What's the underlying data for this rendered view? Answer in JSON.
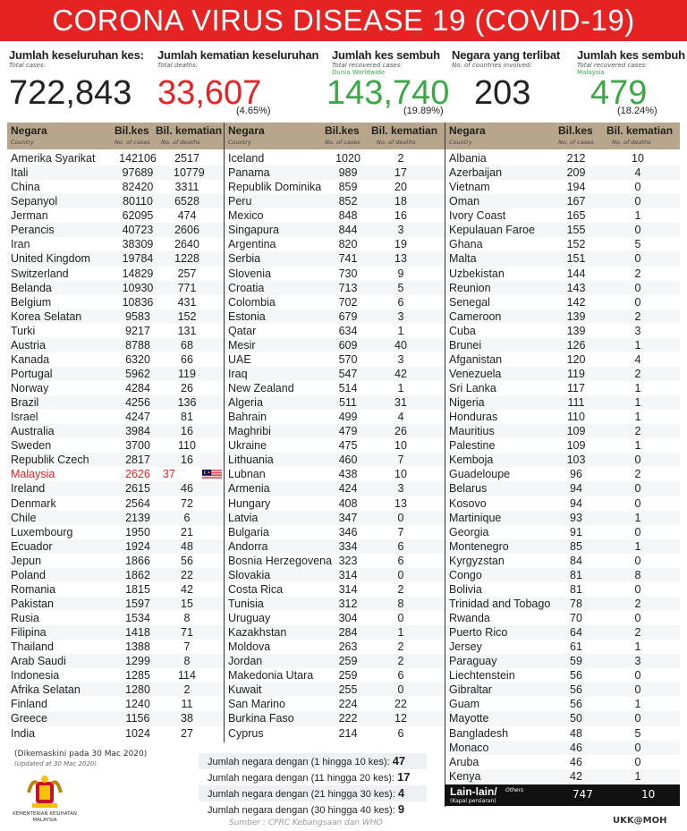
{
  "title": "CORONA VIRUS DISEASE 19 (COVID-19)",
  "stats": [
    {
      "label": "Jumlah keseluruhan kes:",
      "sub": "Total cases:",
      "value": "722,843",
      "color": "#222222"
    },
    {
      "label": "Jumlah kematian keseluruhan",
      "sub": "Total deaths:",
      "value": "33,607",
      "pct": "(4.65%)",
      "color": "#e52322"
    },
    {
      "label": "Jumlah kes sembuh",
      "sub": "Total recovered cases:",
      "sub2": "Dunia Worldwide",
      "value": "143,740",
      "pct": "(19.89%)",
      "color": "#3aa845"
    },
    {
      "label": "Negara yang terlibat",
      "sub": "No. of countries involved:",
      "value": "203",
      "color": "#222222"
    },
    {
      "label": "Jumlah kes sembuh",
      "sub": "Total recovered cases:",
      "sub2": "Malaysia",
      "value": "479",
      "pct": "(18.24%)",
      "color": "#3aa845"
    }
  ],
  "header": {
    "country": "Negara",
    "country_en": "Country",
    "cases": "Bil.kes",
    "cases_en": "No. of cases",
    "deaths": "Bil. kematian",
    "deaths_en": "No. of deaths"
  },
  "highlight": "Malaysia",
  "columns": [
    [
      [
        "Amerika Syarikat",
        "142106",
        "2517"
      ],
      [
        "Itali",
        "97689",
        "10779"
      ],
      [
        "China",
        "82420",
        "3311"
      ],
      [
        "Sepanyol",
        "80110",
        "6528"
      ],
      [
        "Jerman",
        "62095",
        "474"
      ],
      [
        "Perancis",
        "40723",
        "2606"
      ],
      [
        "Iran",
        "38309",
        "2640"
      ],
      [
        "United Kingdom",
        "19784",
        "1228"
      ],
      [
        "Switzerland",
        "14829",
        "257"
      ],
      [
        "Belanda",
        "10930",
        "771"
      ],
      [
        "Belgium",
        "10836",
        "431"
      ],
      [
        "Korea Selatan",
        "9583",
        "152"
      ],
      [
        "Turki",
        "9217",
        "131"
      ],
      [
        "Austria",
        "8788",
        "68"
      ],
      [
        "Kanada",
        "6320",
        "66"
      ],
      [
        "Portugal",
        "5962",
        "119"
      ],
      [
        "Norway",
        "4284",
        "26"
      ],
      [
        "Brazil",
        "4256",
        "136"
      ],
      [
        "Israel",
        "4247",
        "81"
      ],
      [
        "Australia",
        "3984",
        "16"
      ],
      [
        "Sweden",
        "3700",
        "110"
      ],
      [
        "Republik Czech",
        "2817",
        "16"
      ],
      [
        "Malaysia",
        "2626",
        "37"
      ],
      [
        "Ireland",
        "2615",
        "46"
      ],
      [
        "Denmark",
        "2564",
        "72"
      ],
      [
        "Chile",
        "2139",
        "6"
      ],
      [
        "Luxembourg",
        "1950",
        "21"
      ],
      [
        "Ecuador",
        "1924",
        "48"
      ],
      [
        "Jepun",
        "1866",
        "56"
      ],
      [
        "Poland",
        "1862",
        "22"
      ],
      [
        "Romania",
        "1815",
        "42"
      ],
      [
        "Pakistan",
        "1597",
        "15"
      ],
      [
        "Rusia",
        "1534",
        "8"
      ],
      [
        "Filipina",
        "1418",
        "71"
      ],
      [
        "Thailand",
        "1388",
        "7"
      ],
      [
        "Arab Saudi",
        "1299",
        "8"
      ],
      [
        "Indonesia",
        "1285",
        "114"
      ],
      [
        "Afrika Selatan",
        "1280",
        "2"
      ],
      [
        "Finland",
        "1240",
        "11"
      ],
      [
        "Greece",
        "1156",
        "38"
      ],
      [
        "India",
        "1024",
        "27"
      ]
    ],
    [
      [
        "Iceland",
        "1020",
        "2"
      ],
      [
        "Panama",
        "989",
        "17"
      ],
      [
        "Republik Dominika",
        "859",
        "20"
      ],
      [
        "Peru",
        "852",
        "18"
      ],
      [
        "Mexico",
        "848",
        "16"
      ],
      [
        "Singapura",
        "844",
        "3"
      ],
      [
        "Argentina",
        "820",
        "19"
      ],
      [
        "Serbia",
        "741",
        "13"
      ],
      [
        "Slovenia",
        "730",
        "9"
      ],
      [
        "Croatia",
        "713",
        "5"
      ],
      [
        "Colombia",
        "702",
        "6"
      ],
      [
        "Estonia",
        "679",
        "3"
      ],
      [
        "Qatar",
        "634",
        "1"
      ],
      [
        "Mesir",
        "609",
        "40"
      ],
      [
        "UAE",
        "570",
        "3"
      ],
      [
        "Iraq",
        "547",
        "42"
      ],
      [
        "New Zealand",
        "514",
        "1"
      ],
      [
        "Algeria",
        "511",
        "31"
      ],
      [
        "Bahrain",
        "499",
        "4"
      ],
      [
        "Maghribi",
        "479",
        "26"
      ],
      [
        "Ukraine",
        "475",
        "10"
      ],
      [
        "Lithuania",
        "460",
        "7"
      ],
      [
        "Lubnan",
        "438",
        "10"
      ],
      [
        "Armenia",
        "424",
        "3"
      ],
      [
        "Hungary",
        "408",
        "13"
      ],
      [
        "Latvia",
        "347",
        "0"
      ],
      [
        "Bulgaria",
        "346",
        "7"
      ],
      [
        "Andorra",
        "334",
        "6"
      ],
      [
        "Bosnia Herzegovena",
        "323",
        "6"
      ],
      [
        "Slovakia",
        "314",
        "0"
      ],
      [
        "Costa Rica",
        "314",
        "2"
      ],
      [
        "Tunisia",
        "312",
        "8"
      ],
      [
        "Uruguay",
        "304",
        "0"
      ],
      [
        "Kazakhstan",
        "284",
        "1"
      ],
      [
        "Moldova",
        "263",
        "2"
      ],
      [
        "Jordan",
        "259",
        "2"
      ],
      [
        "Makedonia Utara",
        "259",
        "6"
      ],
      [
        "Kuwait",
        "255",
        "0"
      ],
      [
        "San Marino",
        "224",
        "22"
      ],
      [
        "Burkina Faso",
        "222",
        "12"
      ],
      [
        "Cyprus",
        "214",
        "6"
      ]
    ],
    [
      [
        "Albania",
        "212",
        "10"
      ],
      [
        "Azerbaijan",
        "209",
        "4"
      ],
      [
        "Vietnam",
        "194",
        "0"
      ],
      [
        "Oman",
        "167",
        "0"
      ],
      [
        "Ivory Coast",
        "165",
        "1"
      ],
      [
        "Kepulauan Faroe",
        "155",
        "0"
      ],
      [
        "Ghana",
        "152",
        "5"
      ],
      [
        "Malta",
        "151",
        "0"
      ],
      [
        "Uzbekistan",
        "144",
        "2"
      ],
      [
        "Reunion",
        "143",
        "0"
      ],
      [
        "Senegal",
        "142",
        "0"
      ],
      [
        "Cameroon",
        "139",
        "2"
      ],
      [
        "Cuba",
        "139",
        "3"
      ],
      [
        "Brunei",
        "126",
        "1"
      ],
      [
        "Afganistan",
        "120",
        "4"
      ],
      [
        "Venezuela",
        "119",
        "2"
      ],
      [
        "Sri Lanka",
        "117",
        "1"
      ],
      [
        "Nigeria",
        "111",
        "1"
      ],
      [
        "Honduras",
        "110",
        "1"
      ],
      [
        "Mauritius",
        "109",
        "2"
      ],
      [
        "Palestine",
        "109",
        "1"
      ],
      [
        "Kemboja",
        "103",
        "0"
      ],
      [
        "Guadeloupe",
        "96",
        "2"
      ],
      [
        "Belarus",
        "94",
        "0"
      ],
      [
        "Kosovo",
        "94",
        "0"
      ],
      [
        "Martinique",
        "93",
        "1"
      ],
      [
        "Georgia",
        "91",
        "0"
      ],
      [
        "Montenegro",
        "85",
        "1"
      ],
      [
        "Kyrgyzstan",
        "84",
        "0"
      ],
      [
        "Congo",
        "81",
        "8"
      ],
      [
        "Bolivia",
        "81",
        "0"
      ],
      [
        "Trinidad and Tobago",
        "78",
        "2"
      ],
      [
        "Rwanda",
        "70",
        "0"
      ],
      [
        "Puerto Rico",
        "64",
        "2"
      ],
      [
        "Jersey",
        "61",
        "1"
      ],
      [
        "Paraguay",
        "59",
        "3"
      ],
      [
        "Liechtenstein",
        "56",
        "0"
      ],
      [
        "Gibraltar",
        "56",
        "0"
      ],
      [
        "Guam",
        "56",
        "1"
      ],
      [
        "Mayotte",
        "50",
        "0"
      ],
      [
        "Bangladesh",
        "48",
        "5"
      ],
      [
        "Monaco",
        "46",
        "0"
      ],
      [
        "Aruba",
        "46",
        "0"
      ],
      [
        "Kenya",
        "42",
        "1"
      ]
    ]
  ],
  "others": {
    "label": "Lain-lain/",
    "label_en": "Others",
    "sub": "(Kapal persiaran)",
    "cases": "747",
    "deaths": "10"
  },
  "updated": "(Dikemaskini pada 30 Mac 2020)",
  "updated_en": "(Updated at 30 Mac 2020)",
  "ministry": "KEMENTERIAN KESIHATAN MALAYSIA",
  "counts": [
    {
      "label": "Jumlah negara dengan (1 hingga 10 kes):",
      "value": "47"
    },
    {
      "label": "Jumlah negara dengan (11 hingga 20 kes):",
      "value": "17"
    },
    {
      "label": "Jumlah negara dengan (21 hingga 30 kes):",
      "value": "4"
    },
    {
      "label": "Jumlah negara dengan (30 hingga 40 kes):",
      "value": "9"
    }
  ],
  "source": "Sumber : CPRC Kebangsaan dan WHO",
  "credit": "UKK@MOH"
}
